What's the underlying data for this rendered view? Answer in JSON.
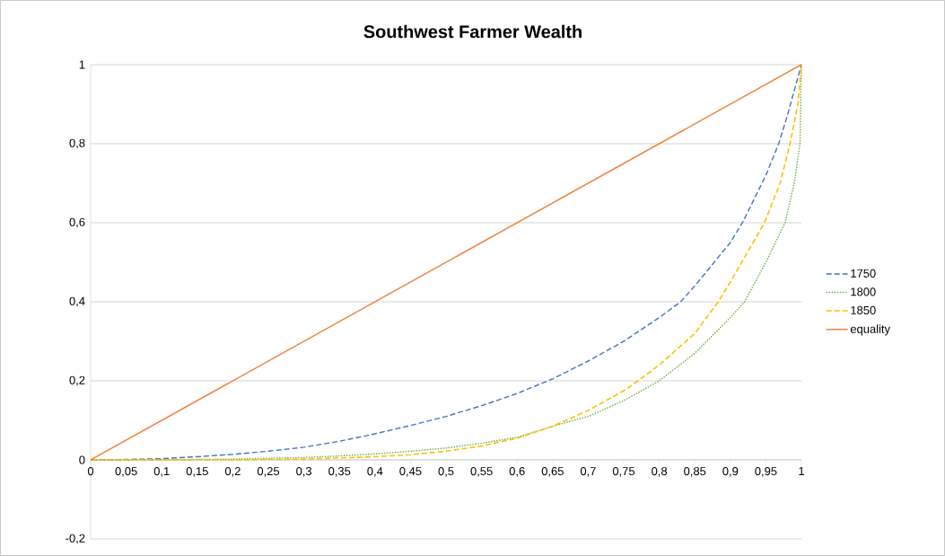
{
  "chart_data": {
    "type": "line",
    "title": "Southwest Farmer Wealth",
    "series": [
      {
        "name": "1750",
        "color": "#4472c4",
        "line_style": "dashed",
        "x": [
          0,
          0.05,
          0.1,
          0.15,
          0.2,
          0.25,
          0.3,
          0.35,
          0.4,
          0.45,
          0.5,
          0.55,
          0.6,
          0.65,
          0.7,
          0.75,
          0.8,
          0.83,
          0.85,
          0.9,
          0.917,
          0.95,
          0.968,
          0.98,
          1
        ],
        "values": [
          0,
          0.001,
          0.003,
          0.008,
          0.014,
          0.022,
          0.032,
          0.047,
          0.066,
          0.087,
          0.11,
          0.137,
          0.168,
          0.205,
          0.25,
          0.3,
          0.36,
          0.4,
          0.44,
          0.55,
          0.6,
          0.72,
          0.8,
          0.87,
          1
        ]
      },
      {
        "name": "1800",
        "color": "#70ad47",
        "line_style": "dotted",
        "x": [
          0,
          0.1,
          0.2,
          0.3,
          0.35,
          0.4,
          0.45,
          0.5,
          0.55,
          0.6,
          0.65,
          0.7,
          0.75,
          0.8,
          0.85,
          0.9,
          0.92,
          0.95,
          0.977,
          0.99,
          0.998,
          1
        ],
        "values": [
          0,
          0,
          0.002,
          0.006,
          0.01,
          0.015,
          0.022,
          0.03,
          0.042,
          0.057,
          0.085,
          0.11,
          0.15,
          0.2,
          0.27,
          0.36,
          0.4,
          0.5,
          0.6,
          0.7,
          0.8,
          1
        ]
      },
      {
        "name": "1850",
        "color": "#ffc000",
        "line_style": "dashed",
        "x": [
          0,
          0.2,
          0.3,
          0.4,
          0.45,
          0.5,
          0.55,
          0.6,
          0.65,
          0.7,
          0.75,
          0.77,
          0.8,
          0.85,
          0.883,
          0.9,
          0.948,
          0.97,
          0.984,
          0.995,
          1
        ],
        "values": [
          0,
          0,
          0.002,
          0.008,
          0.013,
          0.022,
          0.035,
          0.055,
          0.085,
          0.125,
          0.175,
          0.2,
          0.24,
          0.32,
          0.4,
          0.45,
          0.6,
          0.7,
          0.8,
          0.9,
          1
        ]
      },
      {
        "name": "equality",
        "color": "#ed7d31",
        "line_style": "solid",
        "x": [
          0,
          1
        ],
        "values": [
          0,
          1
        ]
      }
    ],
    "xlim": [
      0,
      1
    ],
    "ylim": [
      -0.2,
      1
    ],
    "xticks": [
      0,
      {
        "value": 0.05,
        "label": "0,05"
      },
      {
        "value": 0.1,
        "label": "0,1"
      },
      {
        "value": 0.15,
        "label": "0,15"
      },
      {
        "value": 0.2,
        "label": "0,2"
      },
      {
        "value": 0.25,
        "label": "0,25"
      },
      {
        "value": 0.3,
        "label": "0,3"
      },
      {
        "value": 0.35,
        "label": "0,35"
      },
      {
        "value": 0.4,
        "label": "0,4"
      },
      {
        "value": 0.45,
        "label": "0,45"
      },
      {
        "value": 0.5,
        "label": "0,5"
      },
      {
        "value": 0.55,
        "label": "0,55"
      },
      {
        "value": 0.6,
        "label": "0,6"
      },
      {
        "value": 0.65,
        "label": "0,65"
      },
      {
        "value": 0.7,
        "label": "0,7"
      },
      {
        "value": 0.75,
        "label": "0,75"
      },
      {
        "value": 0.8,
        "label": "0,8"
      },
      {
        "value": 0.85,
        "label": "0,85"
      },
      {
        "value": 0.9,
        "label": "0,9"
      },
      {
        "value": 0.95,
        "label": "0,95"
      },
      1
    ],
    "yticks": [
      {
        "value": -0.2,
        "label": "-0,2"
      },
      0,
      {
        "value": 0.2,
        "label": "0,2"
      },
      {
        "value": 0.4,
        "label": "0,4"
      },
      {
        "value": 0.6,
        "label": "0,6"
      },
      {
        "value": 0.8,
        "label": "0,8"
      },
      1
    ],
    "grid": "y",
    "legend": "right",
    "marker": "none"
  }
}
